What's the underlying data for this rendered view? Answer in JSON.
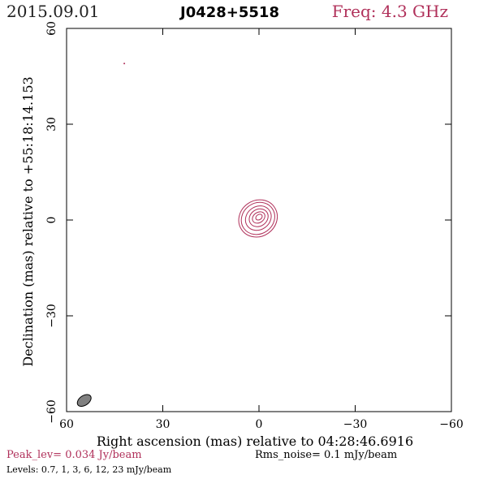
{
  "header": {
    "date": "2015.09.01",
    "source": "J0428+5518",
    "freq": "Freq: 4.3 GHz"
  },
  "footer": {
    "peak": "Peak_lev=  0.034 Jy/beam",
    "rms": "Rms_noise=   0.1 mJy/beam",
    "levels": "Levels: 0.7,    1,    3,    6,   12,   23 mJy/beam"
  },
  "colors": {
    "contour": "#b0305a",
    "beam": "#808080",
    "axis": "#000000"
  },
  "chart_data": {
    "type": "contour",
    "xlabel": "Right ascension (mas) relative to 04:28:46.6916",
    "ylabel": "Declination (mas) relative to +55:18:14.153",
    "xlim": [
      60,
      -60
    ],
    "ylim": [
      -60,
      60
    ],
    "xticks": [
      60,
      30,
      0,
      -30,
      -60
    ],
    "yticks": [
      -60,
      -30,
      0,
      30,
      60
    ],
    "xtick_labels": [
      "60",
      "30",
      "0",
      "−30",
      "−60"
    ],
    "ytick_labels": [
      "−60",
      "−30",
      "0",
      "30",
      "60"
    ],
    "contour_levels_mJy": [
      0.7,
      1,
      3,
      6,
      12,
      23
    ],
    "contours": [
      {
        "level": 0.7,
        "cx": 0.3,
        "cy": 0.5,
        "rx": 6.2,
        "ry": 5.6,
        "angle": -35
      },
      {
        "level": 1,
        "cx": 0.3,
        "cy": 0.5,
        "rx": 5.4,
        "ry": 4.8,
        "angle": -35
      },
      {
        "level": 3,
        "cx": 0.2,
        "cy": 0.6,
        "rx": 4.2,
        "ry": 3.6,
        "angle": -35
      },
      {
        "level": 6,
        "cx": 0.1,
        "cy": 0.7,
        "rx": 3.1,
        "ry": 2.6,
        "angle": -35
      },
      {
        "level": 12,
        "cx": 0.1,
        "cy": 0.8,
        "rx": 2.1,
        "ry": 1.6,
        "angle": -35
      },
      {
        "level": 23,
        "cx": 0.0,
        "cy": 0.9,
        "rx": 1.1,
        "ry": 0.8,
        "angle": -35
      }
    ],
    "spurious_spot": {
      "x": 42,
      "y": 49
    },
    "beam": {
      "x": 54.5,
      "y": -56.5,
      "major": 2.4,
      "minor": 1.5,
      "angle": -35
    }
  }
}
